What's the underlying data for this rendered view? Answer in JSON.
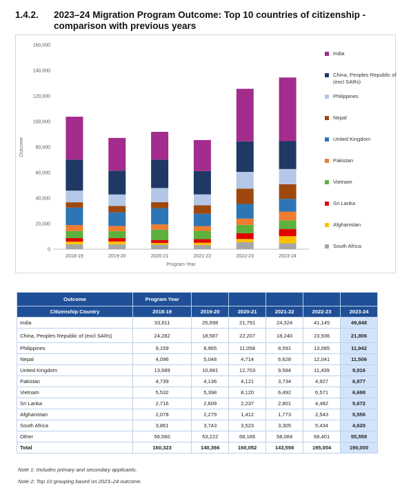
{
  "heading": {
    "number": "1.4.2.",
    "title": "2023–24 Migration Program Outcome: Top 10 countries of citizenship - comparison with previous years"
  },
  "chart_data": {
    "type": "bar",
    "stacked": true,
    "categories": [
      "2018-19",
      "2019-20",
      "2020-21",
      "2021-22",
      "2022-23",
      "2023-24"
    ],
    "xlabel": "Program Year",
    "ylabel": "Outcome",
    "ylim": [
      0,
      160000
    ],
    "yticks": [
      "0",
      "20,000",
      "40,000",
      "60,000",
      "80,000",
      "100,000",
      "120,000",
      "140,000",
      "160,000"
    ],
    "grid": false,
    "legend_position": "right",
    "series": [
      {
        "name": "South Africa",
        "color": "#a6a6a6",
        "values": [
          3861,
          3743,
          3523,
          3305,
          5434,
          4620
        ]
      },
      {
        "name": "Afghanistan",
        "color": "#ffc000",
        "values": [
          2078,
          2279,
          1412,
          1773,
          2543,
          5556
        ]
      },
      {
        "name": "Sri Lanka",
        "color": "#e00000",
        "values": [
          2716,
          2609,
          2237,
          2801,
          4482,
          5672
        ]
      },
      {
        "name": "Vietnam",
        "color": "#5cb03c",
        "values": [
          5532,
          5398,
          8120,
          6492,
          6571,
          6698
        ]
      },
      {
        "name": "Pakistan",
        "color": "#ed7d31",
        "values": [
          4739,
          4136,
          4121,
          3734,
          4927,
          6877
        ]
      },
      {
        "name": "United Kingdom",
        "color": "#2e75b6",
        "values": [
          13689,
          10681,
          12703,
          9584,
          11439,
          9916
        ]
      },
      {
        "name": "Nepal",
        "color": "#9e480e",
        "values": [
          4096,
          5048,
          4714,
          6628,
          12041,
          11506
        ]
      },
      {
        "name": "Philippines",
        "color": "#b4c7e7",
        "values": [
          9159,
          8965,
          11058,
          8591,
          13085,
          11942
        ]
      },
      {
        "name": "China, Peoples Republic of (excl SARs)",
        "color": "#1f3864",
        "values": [
          24282,
          18587,
          22207,
          18240,
          23936,
          21806
        ]
      },
      {
        "name": "India",
        "color": "#a32c8c",
        "values": [
          33611,
          25698,
          21791,
          24324,
          41145,
          49848
        ]
      }
    ]
  },
  "legend_order": [
    9,
    8,
    7,
    6,
    5,
    4,
    3,
    2,
    1,
    0
  ],
  "table": {
    "header_outcome": "Outcome",
    "header_program_year": "Program Year",
    "header_citizenship": "Citizenship Country",
    "years": [
      "2018-19",
      "2019-20",
      "2020-21",
      "2021-22",
      "2022-23",
      "2023-24"
    ],
    "rows": [
      {
        "country": "India",
        "values": [
          "33,611",
          "25,698",
          "21,791",
          "24,324",
          "41,145",
          "49,848"
        ]
      },
      {
        "country": "China, Peoples Republic of (excl SARs)",
        "values": [
          "24,282",
          "18,587",
          "22,207",
          "18,240",
          "23,936",
          "21,806"
        ]
      },
      {
        "country": "Philippines",
        "values": [
          "9,159",
          "8,965",
          "11,058",
          "8,591",
          "13,085",
          "11,942"
        ]
      },
      {
        "country": "Nepal",
        "values": [
          "4,096",
          "5,048",
          "4,714",
          "6,628",
          "12,041",
          "11,506"
        ]
      },
      {
        "country": "United Kingdom",
        "values": [
          "13,689",
          "10,681",
          "12,703",
          "9,584",
          "11,439",
          "9,916"
        ]
      },
      {
        "country": "Pakistan",
        "values": [
          "4,739",
          "4,136",
          "4,121",
          "3,734",
          "4,927",
          "6,877"
        ]
      },
      {
        "country": "Vietnam",
        "values": [
          "5,532",
          "5,398",
          "8,120",
          "6,492",
          "6,571",
          "6,698"
        ]
      },
      {
        "country": "Sri Lanka",
        "values": [
          "2,716",
          "2,609",
          "2,237",
          "2,801",
          "4,482",
          "5,672"
        ]
      },
      {
        "country": "Afghanistan",
        "values": [
          "2,078",
          "2,279",
          "1,412",
          "1,773",
          "2,543",
          "5,556"
        ]
      },
      {
        "country": "South Africa",
        "values": [
          "3,861",
          "3,743",
          "3,523",
          "3,305",
          "5,434",
          "4,620"
        ]
      },
      {
        "country": "Other",
        "values": [
          "56,560",
          "53,222",
          "68,166",
          "58,084",
          "69,401",
          "55,559"
        ]
      },
      {
        "country": "Total",
        "values": [
          "160,323",
          "140,366",
          "160,052",
          "143,556",
          "195,004",
          "190,000"
        ]
      }
    ]
  },
  "notes": [
    "Note 1: Includes primary and secondary applicants.",
    "Note 2: Top 10 grouping based on 2023–24 outcome."
  ]
}
